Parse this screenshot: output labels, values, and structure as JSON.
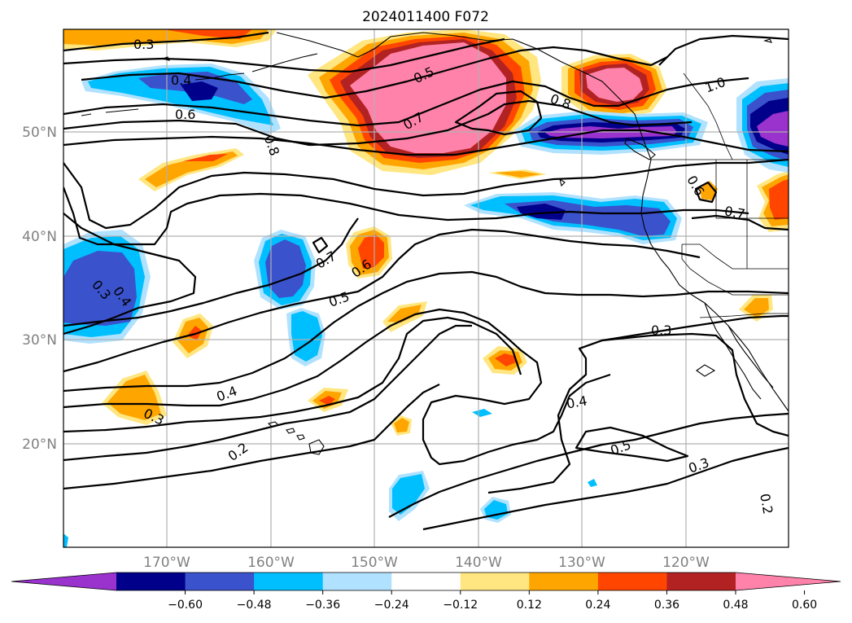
{
  "title": "2024011400 F072",
  "lat_labels": [
    "50°N",
    "40°N",
    "30°N",
    "20°N"
  ],
  "lon_labels": [
    "170°W",
    "160°W",
    "150°W",
    "140°W",
    "130°W",
    "120°W"
  ],
  "colorbar": {
    "ticks": [
      "−0.60",
      "−0.48",
      "−0.36",
      "−0.24",
      "−0.12",
      "0.12",
      "0.24",
      "0.36",
      "0.48",
      "0.60"
    ],
    "colors": [
      "#9a32cd",
      "#00008b",
      "#3a52cc",
      "#00bfff",
      "#b0e2ff",
      "#ffffff",
      "#ffe680",
      "#ffa500",
      "#ff4500",
      "#b22222",
      "#ff82ab"
    ]
  },
  "contour_labels": [
    "0.3",
    "0.4",
    "0.6",
    "0.8",
    "0.5",
    "0.7",
    "0.8",
    "1.0",
    "0.6",
    "0.7",
    "0.6",
    "0.3",
    "0.4",
    "0.5",
    "0.7",
    "0.4",
    "0.3",
    "0.2",
    "0.3",
    "0.4",
    "0.5",
    "0.3",
    "0.2"
  ]
}
